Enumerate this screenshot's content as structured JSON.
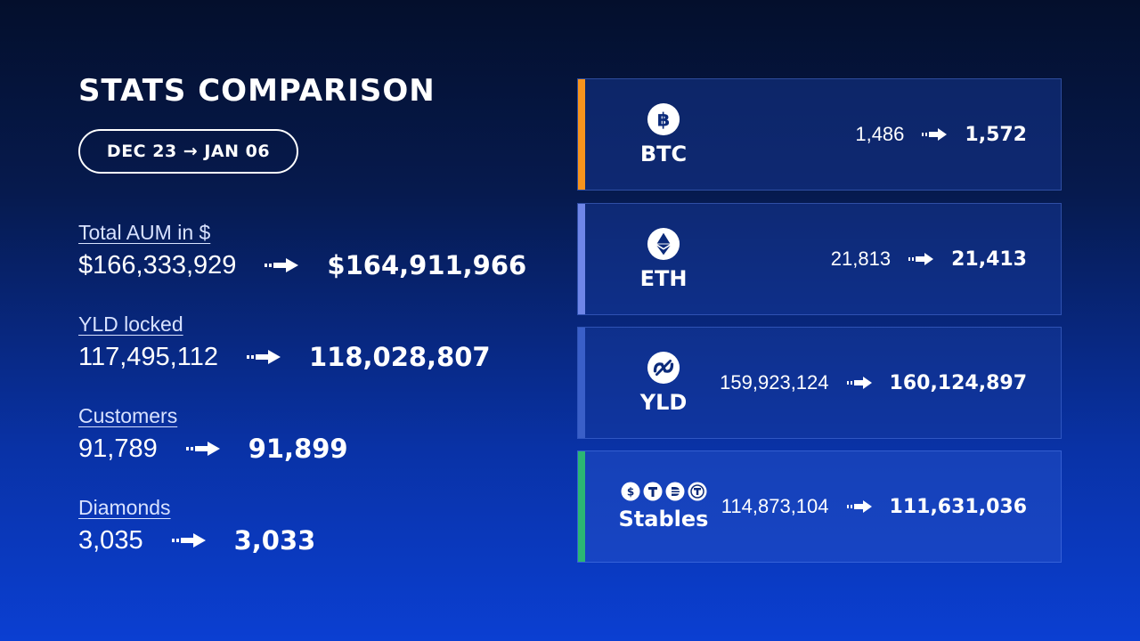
{
  "title": "STATS COMPARISON",
  "date_range": "DEC 23 → JAN 06",
  "stats": [
    {
      "label": "Total AUM in $",
      "from": "$166,333,929",
      "to": "$164,911,966"
    },
    {
      "label": "YLD locked",
      "from": "117,495,112",
      "to": "118,028,807"
    },
    {
      "label": "Customers",
      "from": "91,789",
      "to": "91,899"
    },
    {
      "label": "Diamonds",
      "from": "3,035",
      "to": "3,033"
    }
  ],
  "cards": [
    {
      "name": "BTC",
      "icon": "bitcoin-icon",
      "accent": "#f7941d",
      "from": "1,486",
      "to": "1,572"
    },
    {
      "name": "ETH",
      "icon": "ethereum-icon",
      "accent": "#6f86e8",
      "from": "21,813",
      "to": "21,413"
    },
    {
      "name": "YLD",
      "icon": "yld-icon",
      "accent": "#3a5fc8",
      "from": "159,923,124",
      "to": "160,124,897"
    },
    {
      "name": "Stables",
      "icon": "stablecoins-icons",
      "accent": "#2bb673",
      "from": "114,873,104",
      "to": "111,631,036"
    }
  ],
  "colors": {
    "background_top": "#040f2c",
    "background_bottom": "#0b3fd2",
    "text": "#ffffff"
  }
}
